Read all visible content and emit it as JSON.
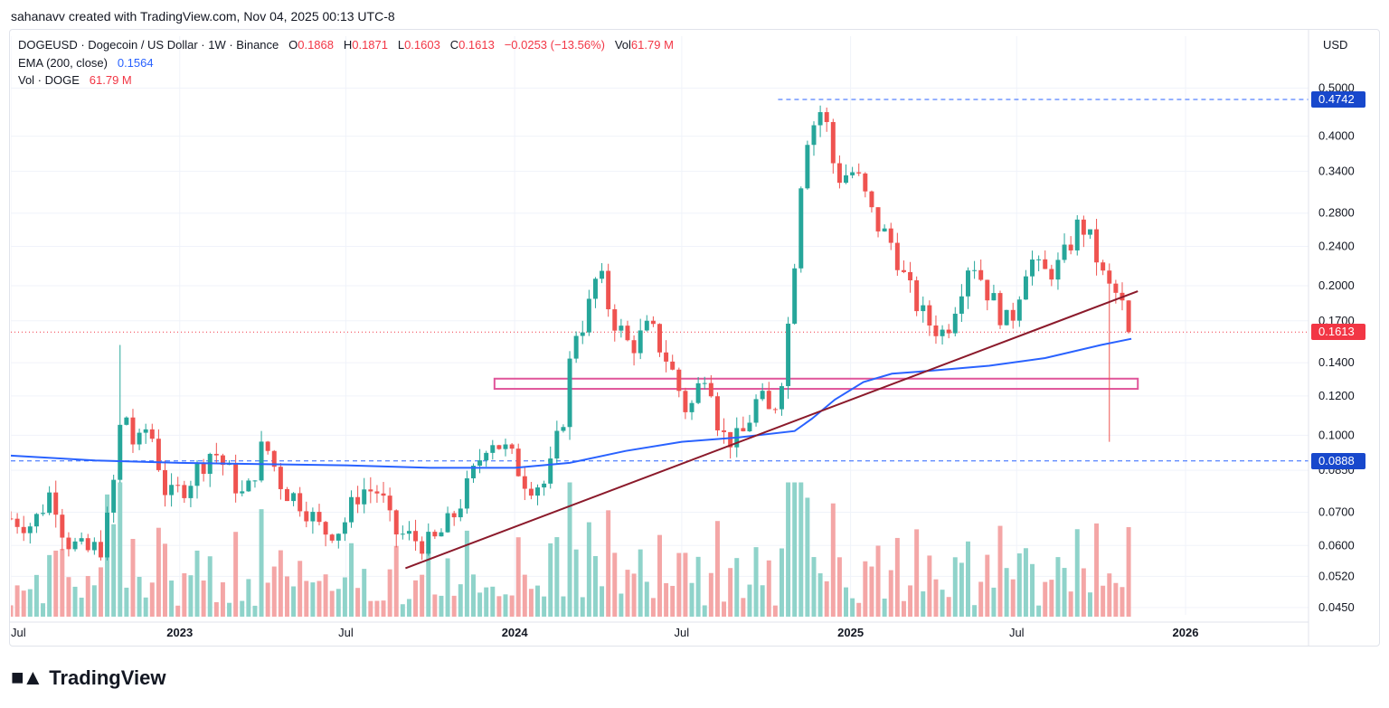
{
  "caption": "sahanavv created with TradingView.com, Nov 04, 2025 00:13 UTC-8",
  "legend": {
    "symbol": "DOGEUSD · Dogecoin / US Dollar · 1W · Binance",
    "o_label": "O",
    "o_val": "0.1868",
    "h_label": "H",
    "h_val": "0.1871",
    "l_label": "L",
    "l_val": "0.1603",
    "c_label": "C",
    "c_val": "0.1613",
    "change": "−0.0253 (−13.56%)",
    "vol_label": "Vol",
    "vol_val": "61.79 M",
    "ema_label": "EMA (200, close)",
    "ema_val": "0.1564",
    "vol2_label": "Vol · DOGE",
    "vol2_val": "61.79 M"
  },
  "currency": "USD",
  "tags": {
    "high_line": "0.4742",
    "last_price": "0.1613",
    "low_line": "0.0888"
  },
  "brand": "TradingView",
  "colors": {
    "up": "#26a69a",
    "down": "#ef5350",
    "up_vol": "#8fd3ca",
    "down_vol": "#f4a6a6",
    "ema": "#2962ff",
    "trend": "#8b1a2b",
    "zone": "#e0559a",
    "hline": "#2962ff",
    "last": "#f23645"
  },
  "chart_data": {
    "type": "candlestick",
    "interval": "1W",
    "scale": "log",
    "y_ticks": [
      0.5,
      0.4,
      0.34,
      0.28,
      0.24,
      0.2,
      0.17,
      0.14,
      0.12,
      0.1,
      0.085,
      0.07,
      0.06,
      0.052,
      0.045
    ],
    "y_tick_labels": [
      "0.5000",
      "0.4000",
      "0.3400",
      "0.2800",
      "0.2400",
      "0.2000",
      "0.1700",
      "0.1400",
      "0.1200",
      "0.1000",
      "0.0850",
      "0.0700",
      "0.0600",
      "0.0520",
      "0.0450"
    ],
    "x_ticks": [
      {
        "label": "Jul",
        "date": "2022-07-01"
      },
      {
        "label": "2023",
        "date": "2023-01-01"
      },
      {
        "label": "Jul",
        "date": "2023-07-01"
      },
      {
        "label": "2024",
        "date": "2024-01-01"
      },
      {
        "label": "Jul",
        "date": "2024-07-01"
      },
      {
        "label": "2025",
        "date": "2025-01-01"
      },
      {
        "label": "Jul",
        "date": "2025-07-01"
      },
      {
        "label": "2026",
        "date": "2026-01-01"
      }
    ],
    "x_range": [
      "2022-07-01",
      "2026-05-15"
    ],
    "y_range": [
      0.0435,
      0.52
    ],
    "close_path": [
      [
        "2022-07-01",
        0.068
      ],
      [
        "2022-07-25",
        0.066
      ],
      [
        "2022-08-15",
        0.078
      ],
      [
        "2022-08-29",
        0.062
      ],
      [
        "2022-09-19",
        0.058
      ],
      [
        "2022-10-10",
        0.06
      ],
      [
        "2022-10-24",
        0.087
      ],
      [
        "2022-10-31",
        0.117
      ],
      [
        "2022-11-14",
        0.092
      ],
      [
        "2022-11-28",
        0.106
      ],
      [
        "2022-12-19",
        0.074
      ],
      [
        "2023-01-09",
        0.08
      ],
      [
        "2023-02-06",
        0.094
      ],
      [
        "2023-02-27",
        0.082
      ],
      [
        "2023-03-13",
        0.074
      ],
      [
        "2023-04-03",
        0.097
      ],
      [
        "2023-04-24",
        0.078
      ],
      [
        "2023-05-15",
        0.073
      ],
      [
        "2023-06-05",
        0.064
      ],
      [
        "2023-06-26",
        0.065
      ],
      [
        "2023-07-17",
        0.078
      ],
      [
        "2023-08-07",
        0.077
      ],
      [
        "2023-08-21",
        0.064
      ],
      [
        "2023-09-11",
        0.062
      ],
      [
        "2023-10-02",
        0.06
      ],
      [
        "2023-10-23",
        0.067
      ],
      [
        "2023-11-13",
        0.08
      ],
      [
        "2023-12-04",
        0.1
      ],
      [
        "2023-12-25",
        0.092
      ],
      [
        "2024-01-15",
        0.08
      ],
      [
        "2024-02-05",
        0.08
      ],
      [
        "2024-02-26",
        0.115
      ],
      [
        "2024-03-04",
        0.16
      ],
      [
        "2024-03-18",
        0.17
      ],
      [
        "2024-04-01",
        0.215
      ],
      [
        "2024-04-15",
        0.175
      ],
      [
        "2024-05-06",
        0.15
      ],
      [
        "2024-05-27",
        0.165
      ],
      [
        "2024-06-17",
        0.14
      ],
      [
        "2024-07-08",
        0.11
      ],
      [
        "2024-07-29",
        0.14
      ],
      [
        "2024-08-12",
        0.1
      ],
      [
        "2024-09-02",
        0.097
      ],
      [
        "2024-09-23",
        0.12
      ],
      [
        "2024-10-07",
        0.108
      ],
      [
        "2024-10-21",
        0.14
      ],
      [
        "2024-11-04",
        0.26
      ],
      [
        "2024-11-11",
        0.39
      ],
      [
        "2024-12-02",
        0.46
      ],
      [
        "2024-12-16",
        0.33
      ],
      [
        "2025-01-06",
        0.34
      ],
      [
        "2025-01-27",
        0.27
      ],
      [
        "2025-02-17",
        0.24
      ],
      [
        "2025-03-03",
        0.2
      ],
      [
        "2025-03-24",
        0.17
      ],
      [
        "2025-04-14",
        0.16
      ],
      [
        "2025-05-12",
        0.23
      ],
      [
        "2025-06-02",
        0.19
      ],
      [
        "2025-06-23",
        0.165
      ],
      [
        "2025-07-14",
        0.23
      ],
      [
        "2025-07-28",
        0.21
      ],
      [
        "2025-08-18",
        0.22
      ],
      [
        "2025-09-08",
        0.27
      ],
      [
        "2025-09-22",
        0.24
      ],
      [
        "2025-10-06",
        0.2
      ],
      [
        "2025-10-20",
        0.19
      ],
      [
        "2025-11-03",
        0.1613
      ]
    ],
    "ema_200": [
      [
        "2022-07-01",
        0.091
      ],
      [
        "2022-10-01",
        0.089
      ],
      [
        "2023-01-01",
        0.088
      ],
      [
        "2023-07-01",
        0.087
      ],
      [
        "2023-10-01",
        0.086
      ],
      [
        "2024-01-01",
        0.086
      ],
      [
        "2024-03-01",
        0.088
      ],
      [
        "2024-05-01",
        0.093
      ],
      [
        "2024-07-01",
        0.097
      ],
      [
        "2024-09-01",
        0.099
      ],
      [
        "2024-11-01",
        0.102
      ],
      [
        "2024-11-20",
        0.108
      ],
      [
        "2024-12-15",
        0.118
      ],
      [
        "2025-01-15",
        0.128
      ],
      [
        "2025-02-15",
        0.133
      ],
      [
        "2025-04-01",
        0.135
      ],
      [
        "2025-06-01",
        0.138
      ],
      [
        "2025-08-01",
        0.143
      ],
      [
        "2025-10-01",
        0.152
      ],
      [
        "2025-11-03",
        0.1564
      ]
    ],
    "trendline": [
      [
        "2023-09-04",
        0.054
      ],
      [
        "2025-11-10",
        0.195
      ]
    ],
    "zone": {
      "from": "2023-12-10",
      "to": "2025-11-10",
      "low": 0.124,
      "high": 0.13
    },
    "h_lines": [
      0.4742,
      0.0888
    ],
    "last_price": 0.1613,
    "wick_highlights": [
      {
        "date": "2022-10-31",
        "high": 0.152
      },
      {
        "date": "2025-10-13",
        "low": 0.097
      }
    ]
  }
}
